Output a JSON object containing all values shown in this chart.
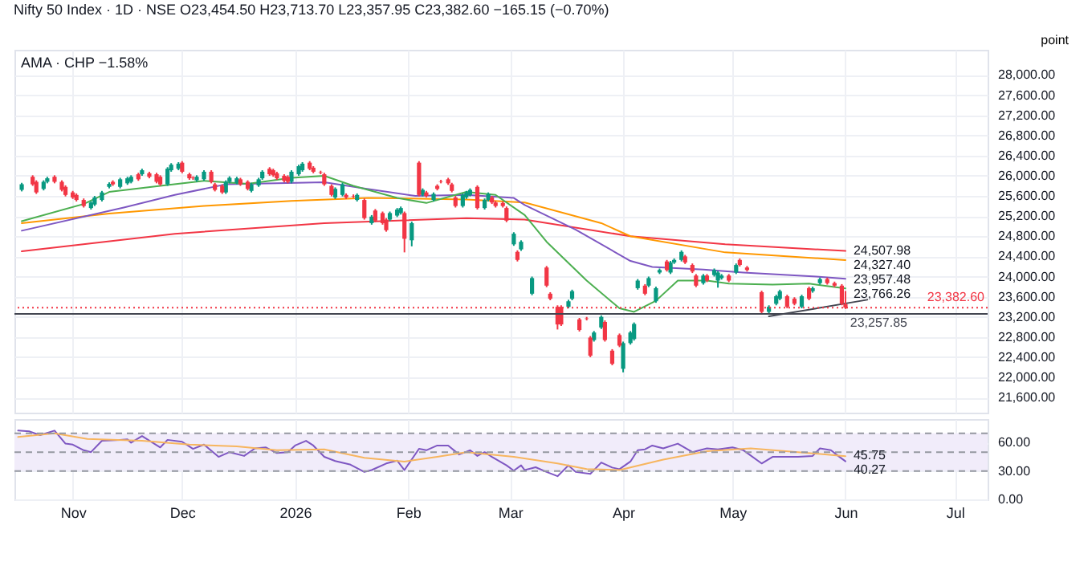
{
  "chart_data": [
    {
      "type": "candlestick",
      "title": "Nifty 50 Index · 1D · NSE O23,454.50 H23,713.70 L23,357.95 C23,382.60 −165.15 (−0.70%)",
      "ylabel": "point",
      "xlim": [
        "2025-10-16",
        "2026-07-10"
      ],
      "ylim": [
        21300,
        28500
      ],
      "xticks": [
        {
          "value": "2025-11-01",
          "label": null
        },
        {
          "value": "2025-12-01",
          "label": null
        },
        {
          "value": "2026-01-01",
          "label": null
        },
        {
          "value": "2026-02-01",
          "label": null
        },
        {
          "value": "2026-03-01",
          "label": null
        },
        {
          "value": "2026-04-01",
          "label": null
        },
        {
          "value": "2026-05-01",
          "label": null
        },
        {
          "value": "2026-06-01",
          "label": null
        },
        {
          "value": "2026-07-01",
          "label": null
        }
      ],
      "yticks": [
        {
          "value": 21600,
          "label": "21,600.00"
        },
        {
          "value": 22000,
          "label": "22,000.00"
        },
        {
          "value": 22400,
          "label": "22,400.00"
        },
        {
          "value": 22800,
          "label": "22,800.00"
        },
        {
          "value": 23200,
          "label": "23,200.00"
        },
        {
          "value": 23600,
          "label": "23,600.00"
        },
        {
          "value": 24000,
          "label": "24,000.00"
        },
        {
          "value": 24400,
          "label": "24,400.00"
        },
        {
          "value": 24800,
          "label": "24,800.00"
        },
        {
          "value": 25200,
          "label": "25,200.00"
        },
        {
          "value": 25600,
          "label": "25,600.00"
        },
        {
          "value": 26000,
          "label": "26,000.00"
        },
        {
          "value": 26400,
          "label": "26,400.00"
        },
        {
          "value": 26800,
          "label": "26,800.00"
        },
        {
          "value": 27200,
          "label": "27,200.00"
        },
        {
          "value": 27600,
          "label": "27,600.00"
        },
        {
          "value": 28000,
          "label": "28,000.00"
        }
      ],
      "tick_labels": "y",
      "grid": true,
      "series": [
        {
          "type": "line",
          "color": "#f23645",
          "x": [
            "2025-10-18",
            "2025-11-29",
            "2026-01-09",
            "2026-02-17",
            "2026-03-05",
            "2026-04-03",
            "2026-04-29",
            "2026-06-01"
          ],
          "values": [
            24500,
            24850,
            25060,
            25160,
            25130,
            24800,
            24640,
            24508
          ]
        },
        {
          "type": "line",
          "color": "#ff9800",
          "x": [
            "2025-10-18",
            "2025-11-11",
            "2025-12-07",
            "2025-12-31",
            "2026-01-21",
            "2026-02-17",
            "2026-03-05",
            "2026-03-26",
            "2026-04-03",
            "2026-04-29",
            "2026-06-01"
          ],
          "values": [
            25060,
            25250,
            25400,
            25500,
            25560,
            25530,
            25470,
            25060,
            24800,
            24480,
            24327
          ]
        },
        {
          "type": "line",
          "color": "#7e57c2",
          "x": [
            "2025-10-18",
            "2025-11-15",
            "2025-11-29",
            "2025-12-13",
            "2025-12-27",
            "2026-01-09",
            "2026-01-20",
            "2026-02-03",
            "2026-02-17",
            "2026-03-02",
            "2026-03-05",
            "2026-03-19",
            "2026-04-03",
            "2026-04-09",
            "2026-04-23",
            "2026-05-04",
            "2026-05-24",
            "2026-06-01"
          ],
          "values": [
            24910,
            25370,
            25620,
            25830,
            25850,
            25870,
            25750,
            25600,
            25620,
            25560,
            25420,
            24930,
            24310,
            24190,
            24140,
            24080,
            24000,
            23957
          ]
        },
        {
          "type": "line",
          "color": "#4caf50",
          "x": [
            "2025-10-18",
            "2025-11-04",
            "2025-11-11",
            "2025-11-25",
            "2025-12-07",
            "2025-12-19",
            "2025-12-31",
            "2026-01-09",
            "2026-01-17",
            "2026-01-29",
            "2026-02-06",
            "2026-02-17",
            "2026-02-25",
            "2026-03-05",
            "2026-03-11",
            "2026-03-22",
            "2026-03-31",
            "2026-04-04",
            "2026-04-10",
            "2026-04-16",
            "2026-04-24",
            "2026-04-30",
            "2026-05-12",
            "2026-05-22",
            "2026-06-01"
          ],
          "values": [
            25100,
            25440,
            25680,
            25800,
            25900,
            25840,
            25960,
            26000,
            25800,
            25560,
            25460,
            25680,
            25620,
            25220,
            24690,
            23920,
            23370,
            23300,
            23520,
            23920,
            23920,
            23860,
            23840,
            23860,
            23766
          ]
        },
        {
          "type": "line",
          "color": "#434651",
          "x": [
            "2026-05-11",
            "2026-06-07"
          ],
          "values": [
            23210,
            23540
          ]
        },
        {
          "type": "candlestick",
          "color": "#089981",
          "x": [
            "2025-10-18",
            "2025-10-24",
            "2025-10-25",
            "2025-11-06",
            "2025-11-07",
            "2025-11-09",
            "2025-11-11",
            "2025-11-14",
            "2025-11-16",
            "2025-11-17",
            "2025-11-20",
            "2025-11-27",
            "2025-11-28",
            "2025-11-30",
            "2025-12-05",
            "2025-12-07",
            "2025-12-13",
            "2025-12-14",
            "2025-12-16",
            "2025-12-20",
            "2025-12-22",
            "2025-12-23",
            "2025-12-31",
            "2026-01-02",
            "2026-01-03",
            "2026-01-12",
            "2026-01-14",
            "2026-01-18",
            "2026-01-22",
            "2026-01-27",
            "2026-01-29",
            "2026-01-30",
            "2026-02-02",
            "2026-02-05",
            "2026-02-08",
            "2026-02-16",
            "2026-02-17",
            "2026-02-18",
            "2026-02-22",
            "2026-02-23",
            "2026-03-02",
            "2026-03-04",
            "2026-03-07",
            "2026-03-17",
            "2026-03-18",
            "2026-03-24",
            "2026-03-26",
            "2026-04-01",
            "2026-04-03",
            "2026-04-04",
            "2026-04-05",
            "2026-04-08",
            "2026-04-10",
            "2026-04-11",
            "2026-04-14",
            "2026-04-15",
            "2026-04-17",
            "2026-04-23",
            "2026-04-26",
            "2026-04-27",
            "2026-04-28",
            "2026-05-02",
            "2026-05-11",
            "2026-05-13",
            "2026-05-14",
            "2026-05-20",
            "2026-05-23",
            "2026-05-25"
          ],
          "ohlc": [
            [
              25720,
              25860,
              25690,
              25830
            ],
            [
              25740,
              25910,
              25710,
              25880
            ],
            [
              25880,
              25980,
              25850,
              25950
            ],
            [
              25360,
              25500,
              25330,
              25470
            ],
            [
              25430,
              25600,
              25400,
              25570
            ],
            [
              25520,
              25700,
              25490,
              25670
            ],
            [
              25780,
              25870,
              25750,
              25840
            ],
            [
              25780,
              25960,
              25750,
              25930
            ],
            [
              25850,
              25980,
              25820,
              25950
            ],
            [
              25880,
              26010,
              25850,
              25980
            ],
            [
              26030,
              26140,
              26000,
              26110
            ],
            [
              25830,
              26170,
              25800,
              26140
            ],
            [
              26110,
              26250,
              26080,
              26220
            ],
            [
              26140,
              26270,
              26110,
              26240
            ],
            [
              25910,
              26010,
              25880,
              25980
            ],
            [
              25930,
              26110,
              25900,
              26080
            ],
            [
              25670,
              25910,
              25640,
              25880
            ],
            [
              25880,
              25990,
              25850,
              25960
            ],
            [
              25860,
              25980,
              25830,
              25950
            ],
            [
              25700,
              25860,
              25670,
              25830
            ],
            [
              25810,
              25960,
              25780,
              25930
            ],
            [
              25950,
              26110,
              25920,
              26080
            ],
            [
              25880,
              26110,
              25850,
              26080
            ],
            [
              26030,
              26220,
              26000,
              26190
            ],
            [
              26110,
              26270,
              26080,
              26240
            ],
            [
              25570,
              25770,
              25540,
              25740
            ],
            [
              25620,
              25860,
              25590,
              25830
            ],
            [
              25520,
              25650,
              25490,
              25620
            ],
            [
              25060,
              25220,
              25030,
              25190
            ],
            [
              25130,
              25290,
              25100,
              25260
            ],
            [
              25210,
              25360,
              25180,
              25330
            ],
            [
              25260,
              25390,
              25230,
              25360
            ],
            [
              24720,
              25090,
              24600,
              25060
            ],
            [
              25620,
              25750,
              25590,
              25720
            ],
            [
              25520,
              25670,
              25490,
              25640
            ],
            [
              25400,
              25650,
              25370,
              25620
            ],
            [
              25570,
              25700,
              25540,
              25670
            ],
            [
              25620,
              25750,
              25590,
              25720
            ],
            [
              25360,
              25550,
              25330,
              25520
            ],
            [
              25520,
              25670,
              25490,
              25640
            ],
            [
              24640,
              24880,
              24610,
              24850
            ],
            [
              24540,
              24720,
              24510,
              24690
            ],
            [
              23660,
              24000,
              23630,
              23970
            ],
            [
              23400,
              23540,
              23370,
              23510
            ],
            [
              23560,
              23740,
              23530,
              23710
            ],
            [
              22740,
              22920,
              22710,
              22890
            ],
            [
              22990,
              23230,
              22960,
              23200
            ],
            [
              22170,
              22710,
              22100,
              22680
            ],
            [
              22680,
              22920,
              22650,
              22890
            ],
            [
              22760,
              23090,
              22730,
              23060
            ],
            [
              23770,
              23950,
              23740,
              23920
            ],
            [
              23820,
              24000,
              23790,
              23970
            ],
            [
              23510,
              23800,
              23480,
              23770
            ],
            [
              24080,
              24160,
              24050,
              24130
            ],
            [
              24080,
              24310,
              24050,
              24280
            ],
            [
              24280,
              24360,
              24250,
              24330
            ],
            [
              24330,
              24520,
              24300,
              24490
            ],
            [
              23870,
              24050,
              23840,
              24020
            ],
            [
              24030,
              24160,
              24000,
              24130
            ],
            [
              23920,
              24110,
              23780,
              24080
            ],
            [
              23970,
              24050,
              23940,
              24020
            ],
            [
              24080,
              24260,
              24050,
              24230
            ],
            [
              23300,
              23430,
              23270,
              23400
            ],
            [
              23460,
              23640,
              23430,
              23610
            ],
            [
              23560,
              23740,
              23530,
              23710
            ],
            [
              23400,
              23640,
              23370,
              23610
            ],
            [
              23710,
              23800,
              23680,
              23770
            ],
            [
              23870,
              23980,
              23840,
              23950
            ]
          ]
        },
        {
          "type": "candlestick",
          "color": "#f23645",
          "x": [
            "2025-10-21",
            "2025-10-22",
            "2025-10-27",
            "2025-10-29",
            "2025-10-30",
            "2025-11-01",
            "2025-11-02",
            "2025-11-04",
            "2025-11-12",
            "2025-11-19",
            "2025-11-22",
            "2025-11-24",
            "2025-11-25",
            "2025-12-01",
            "2025-12-03",
            "2025-12-04",
            "2025-12-09",
            "2025-12-10",
            "2025-12-12",
            "2025-12-17",
            "2025-12-19",
            "2025-12-25",
            "2025-12-26",
            "2025-12-27",
            "2025-12-29",
            "2025-12-30",
            "2026-01-05",
            "2026-01-06",
            "2026-01-08",
            "2026-01-09",
            "2026-01-11",
            "2026-01-15",
            "2026-01-17",
            "2026-01-20",
            "2026-01-23",
            "2026-01-25",
            "2026-01-26",
            "2026-01-31",
            "2026-02-04",
            "2026-02-06",
            "2026-02-09",
            "2026-02-10",
            "2026-02-12",
            "2026-02-13",
            "2026-02-14",
            "2026-02-20",
            "2026-02-24",
            "2026-02-25",
            "2026-02-27",
            "2026-02-28",
            "2026-03-03",
            "2026-03-11",
            "2026-03-12",
            "2026-03-14",
            "2026-03-15",
            "2026-03-20",
            "2026-03-22",
            "2026-03-23",
            "2026-03-27",
            "2026-03-29",
            "2026-03-31",
            "2026-04-07",
            "2026-04-13",
            "2026-04-18",
            "2026-04-20",
            "2026-04-21",
            "2026-04-24",
            "2026-04-30",
            "2026-05-03",
            "2026-05-05",
            "2026-05-09",
            "2026-05-16",
            "2026-05-18",
            "2026-05-22",
            "2026-05-27",
            "2026-05-29",
            "2026-05-31",
            "2026-06-01"
          ],
          "ohlc": [
            [
              25980,
              26010,
              25800,
              25830
            ],
            [
              25880,
              25910,
              25640,
              25670
            ],
            [
              25980,
              26010,
              25850,
              25880
            ],
            [
              25880,
              25910,
              25690,
              25720
            ],
            [
              25780,
              25810,
              25590,
              25620
            ],
            [
              25670,
              25700,
              25540,
              25570
            ],
            [
              25620,
              25650,
              25490,
              25520
            ],
            [
              25520,
              25550,
              25370,
              25400
            ],
            [
              25880,
              25910,
              25800,
              25830
            ],
            [
              26030,
              26060,
              25900,
              25930
            ],
            [
              26050,
              26080,
              25950,
              25980
            ],
            [
              26030,
              26060,
              25850,
              25880
            ],
            [
              25980,
              26010,
              25800,
              25830
            ],
            [
              26260,
              26290,
              26050,
              26080
            ],
            [
              26030,
              26060,
              25920,
              25950
            ],
            [
              25960,
              25990,
              25920,
              25950
            ],
            [
              26080,
              26110,
              25850,
              25880
            ],
            [
              25830,
              25860,
              25690,
              25720
            ],
            [
              25800,
              25830,
              25640,
              25670
            ],
            [
              25930,
              25960,
              25800,
              25830
            ],
            [
              25880,
              25910,
              25710,
              25740
            ],
            [
              26140,
              26170,
              26000,
              26030
            ],
            [
              26110,
              26140,
              25980,
              26010
            ],
            [
              26050,
              26080,
              25920,
              25950
            ],
            [
              26000,
              26030,
              25870,
              25900
            ],
            [
              25980,
              26010,
              25850,
              25880
            ],
            [
              26260,
              26290,
              26110,
              26140
            ],
            [
              26160,
              26190,
              26050,
              26080
            ],
            [
              26070,
              26100,
              26030,
              26060
            ],
            [
              26030,
              26060,
              25800,
              25830
            ],
            [
              25800,
              25830,
              25590,
              25620
            ],
            [
              25620,
              25650,
              25540,
              25570
            ],
            [
              25600,
              25630,
              25560,
              25590
            ],
            [
              25520,
              25550,
              25130,
              25160
            ],
            [
              25310,
              25340,
              25080,
              25110
            ],
            [
              25260,
              25290,
              25030,
              25060
            ],
            [
              25130,
              25160,
              24890,
              24920
            ],
            [
              25260,
              25290,
              24480,
              24750
            ],
            [
              26260,
              26290,
              25590,
              25620
            ],
            [
              25670,
              25700,
              25570,
              25600
            ],
            [
              25800,
              25830,
              25710,
              25740
            ],
            [
              25890,
              25920,
              25850,
              25880
            ],
            [
              25930,
              25960,
              25820,
              25850
            ],
            [
              25830,
              25860,
              25670,
              25700
            ],
            [
              25570,
              25600,
              25370,
              25400
            ],
            [
              25780,
              25810,
              25330,
              25360
            ],
            [
              25570,
              25600,
              25440,
              25470
            ],
            [
              25470,
              25500,
              25370,
              25400
            ],
            [
              25460,
              25490,
              25370,
              25400
            ],
            [
              25360,
              25390,
              25080,
              25110
            ],
            [
              24490,
              24520,
              24300,
              24330
            ],
            [
              24180,
              24210,
              23790,
              23820
            ],
            [
              23660,
              23690,
              23530,
              23560
            ],
            [
              23400,
              23430,
              22950,
              23050
            ],
            [
              23400,
              23430,
              23020,
              23050
            ],
            [
              23150,
              23180,
              22910,
              22940
            ],
            [
              23170,
              23200,
              23130,
              23160
            ],
            [
              22790,
              22820,
              22400,
              22430
            ],
            [
              23100,
              23130,
              22710,
              22740
            ],
            [
              22530,
              22560,
              22240,
              22270
            ],
            [
              22840,
              22870,
              22600,
              22630
            ],
            [
              23820,
              23850,
              23630,
              23660
            ],
            [
              24300,
              24330,
              24100,
              24130
            ],
            [
              24400,
              24430,
              24250,
              24280
            ],
            [
              24230,
              24260,
              24070,
              24100
            ],
            [
              24020,
              24050,
              23790,
              23820
            ],
            [
              24020,
              24050,
              23890,
              23920
            ],
            [
              24020,
              24050,
              23890,
              23920
            ],
            [
              24330,
              24360,
              24200,
              24230
            ],
            [
              24180,
              24210,
              24100,
              24130
            ],
            [
              23690,
              23720,
              23270,
              23300
            ],
            [
              23610,
              23640,
              23370,
              23400
            ],
            [
              23560,
              23590,
              23430,
              23460
            ],
            [
              23770,
              23800,
              23530,
              23560
            ],
            [
              23950,
              23980,
              23840,
              23870
            ],
            [
              23870,
              23900,
              23790,
              23820
            ],
            [
              23820,
              23850,
              23430,
              23460
            ],
            [
              23454.5,
              23713.7,
              23357.95,
              23382.6
            ]
          ]
        }
      ],
      "ref_lines": [
        {
          "axis": "y",
          "value": 23382.6,
          "label": "23,382.60",
          "color": "#f23645",
          "line_style": "dotted"
        },
        {
          "axis": "y",
          "value": 23257.85,
          "label": "23,257.85",
          "color": "#434651",
          "line_style": "solid"
        }
      ],
      "annotations": [
        "AMA · CHP −1.58%",
        {
          "text": "24,507.98",
          "x": "2026-06-01",
          "y": 24508
        },
        {
          "text": "24,327.40",
          "x": "2026-06-01",
          "y": 24327
        },
        {
          "text": "23,957.48",
          "x": "2026-06-01",
          "y": 23957
        },
        {
          "text": "23,766.26",
          "x": "2026-06-01",
          "y": 23766
        }
      ]
    },
    {
      "type": "line",
      "xlim": [
        "2025-10-16",
        "2026-07-10"
      ],
      "ylim": [
        0,
        85
      ],
      "xticks": [
        {
          "value": "2025-11-01",
          "label": "Nov"
        },
        {
          "value": "2025-12-01",
          "label": "Dec"
        },
        {
          "value": "2026-01-01",
          "label": "2026"
        },
        {
          "value": "2026-02-01",
          "label": "Feb"
        },
        {
          "value": "2026-03-01",
          "label": "Mar"
        },
        {
          "value": "2026-04-01",
          "label": "Apr"
        },
        {
          "value": "2026-05-01",
          "label": "May"
        },
        {
          "value": "2026-06-01",
          "label": "Jun"
        },
        {
          "value": "2026-07-01",
          "label": "Jul"
        }
      ],
      "yticks": [
        {
          "value": 0,
          "label": "0.00"
        },
        {
          "value": 30,
          "label": "30.00"
        },
        {
          "value": 60,
          "label": "60.00"
        }
      ],
      "grid": true,
      "bands": [
        {
          "axis": "y",
          "from": 30,
          "to": 70,
          "color": "#f1ecfa"
        }
      ],
      "ref_lines": [
        {
          "axis": "y",
          "value": 70,
          "color": "#9598a1",
          "line_style": "dashed"
        },
        {
          "axis": "y",
          "value": 50,
          "color": "#9598a1",
          "line_style": "dashed"
        },
        {
          "axis": "y",
          "value": 30,
          "color": "#9598a1",
          "line_style": "dashed"
        }
      ],
      "series": [
        {
          "color": "#7e57c2",
          "x": [
            "2025-10-17",
            "2025-10-20",
            "2025-10-23",
            "2025-10-27",
            "2025-10-30",
            "2025-11-01",
            "2025-11-04",
            "2025-11-06",
            "2025-11-09",
            "2025-11-14",
            "2025-11-16",
            "2025-11-17",
            "2025-11-20",
            "2025-11-25",
            "2025-11-27",
            "2025-12-01",
            "2025-12-04",
            "2025-12-07",
            "2025-12-11",
            "2025-12-14",
            "2025-12-18",
            "2025-12-21",
            "2025-12-24",
            "2025-12-27",
            "2025-12-30",
            "2026-01-01",
            "2026-01-04",
            "2026-01-06",
            "2026-01-09",
            "2026-01-12",
            "2026-01-16",
            "2026-01-20",
            "2026-01-22",
            "2026-01-26",
            "2026-01-29",
            "2026-01-31",
            "2026-02-04",
            "2026-02-06",
            "2026-02-09",
            "2026-02-12",
            "2026-02-15",
            "2026-02-18",
            "2026-02-20",
            "2026-02-22",
            "2026-02-24",
            "2026-02-28",
            "2026-03-02",
            "2026-03-04",
            "2026-03-05",
            "2026-03-08",
            "2026-03-11",
            "2026-03-14",
            "2026-03-17",
            "2026-03-19",
            "2026-03-23",
            "2026-03-26",
            "2026-03-29",
            "2026-03-31",
            "2026-04-03",
            "2026-04-05",
            "2026-04-07",
            "2026-04-09",
            "2026-04-12",
            "2026-04-16",
            "2026-04-20",
            "2026-04-24",
            "2026-04-27",
            "2026-05-01",
            "2026-05-04",
            "2026-05-09",
            "2026-05-12",
            "2026-05-19",
            "2026-05-23",
            "2026-05-25",
            "2026-05-28",
            "2026-05-30",
            "2026-06-01"
          ],
          "values": [
            72.8,
            72,
            68,
            72.8,
            59,
            58,
            52,
            50,
            62,
            63,
            63.5,
            60,
            67,
            55,
            63,
            61,
            53.5,
            58,
            45,
            50,
            46,
            54,
            55,
            49,
            50,
            57,
            62,
            57,
            45,
            40.6,
            37,
            29,
            31,
            38,
            41,
            31,
            53.5,
            52,
            57,
            57,
            47.5,
            52,
            46,
            50,
            45,
            36,
            30.4,
            36,
            31,
            34,
            29,
            24.5,
            36,
            29,
            27,
            39,
            33.7,
            32,
            40,
            52,
            53,
            57,
            54,
            59,
            50,
            54,
            53,
            55,
            52,
            38,
            45,
            45,
            46,
            54,
            52,
            46,
            40.27
          ]
        },
        {
          "color": "#f7b55e",
          "x": [
            "2025-10-17",
            "2025-10-27",
            "2025-11-05",
            "2025-11-20",
            "2025-12-03",
            "2025-12-16",
            "2025-12-27",
            "2026-01-09",
            "2026-01-20",
            "2026-01-31",
            "2026-02-09",
            "2026-02-17",
            "2026-03-02",
            "2026-03-14",
            "2026-03-22",
            "2026-03-31",
            "2026-04-12",
            "2026-04-24",
            "2026-05-06",
            "2026-05-19",
            "2026-06-01"
          ],
          "values": [
            66,
            70,
            64,
            62,
            58,
            56,
            52,
            53,
            44,
            40,
            45,
            50,
            45,
            38,
            32,
            31,
            42,
            51,
            54,
            50,
            45.75
          ]
        }
      ],
      "annotations": [
        {
          "text": "45.75",
          "x": "2026-06-01",
          "y": 45.75
        },
        {
          "text": "40.27",
          "x": "2026-06-01",
          "y": 40.27
        }
      ]
    }
  ]
}
